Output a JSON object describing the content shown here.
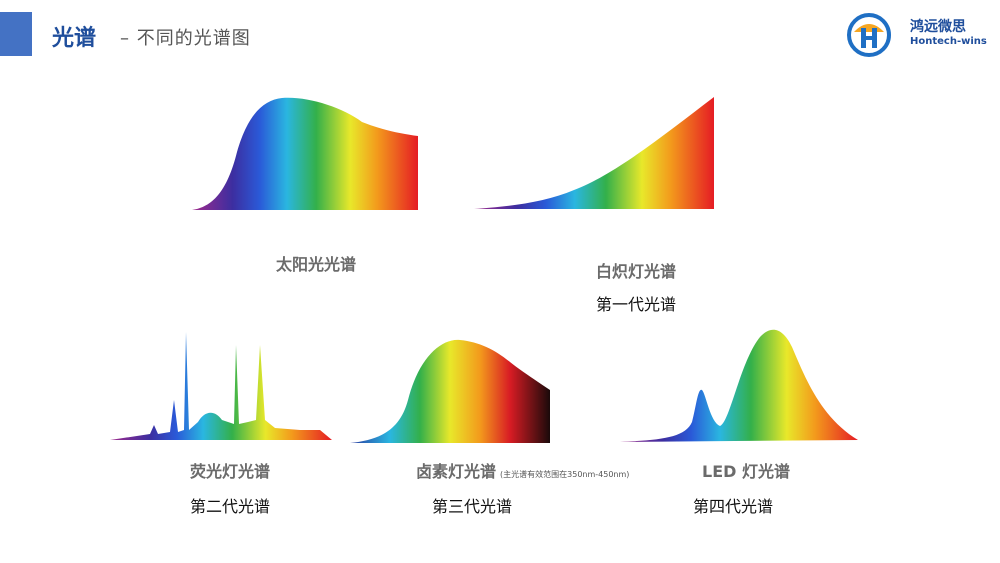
{
  "header": {
    "title": "光谱",
    "subtitle": "– 不同的光谱图",
    "accent_color": "#4472c4"
  },
  "logo": {
    "name_cn": "鸿远微思",
    "name_en": "Hontech-wins",
    "icon": "hontech-logo-icon"
  },
  "spectra": [
    {
      "label": "太阳光光谱",
      "generation": ""
    },
    {
      "label": "白炽灯光谱",
      "generation": "第一代光谱"
    },
    {
      "label": "荧光灯光谱",
      "generation": "第二代光谱"
    },
    {
      "label": "卤素灯光谱",
      "note": "(主光谱有效范围在350nm-450nm)",
      "generation": "第三代光谱"
    },
    {
      "label": "LED 灯光谱",
      "generation": "第四代光谱"
    }
  ]
}
